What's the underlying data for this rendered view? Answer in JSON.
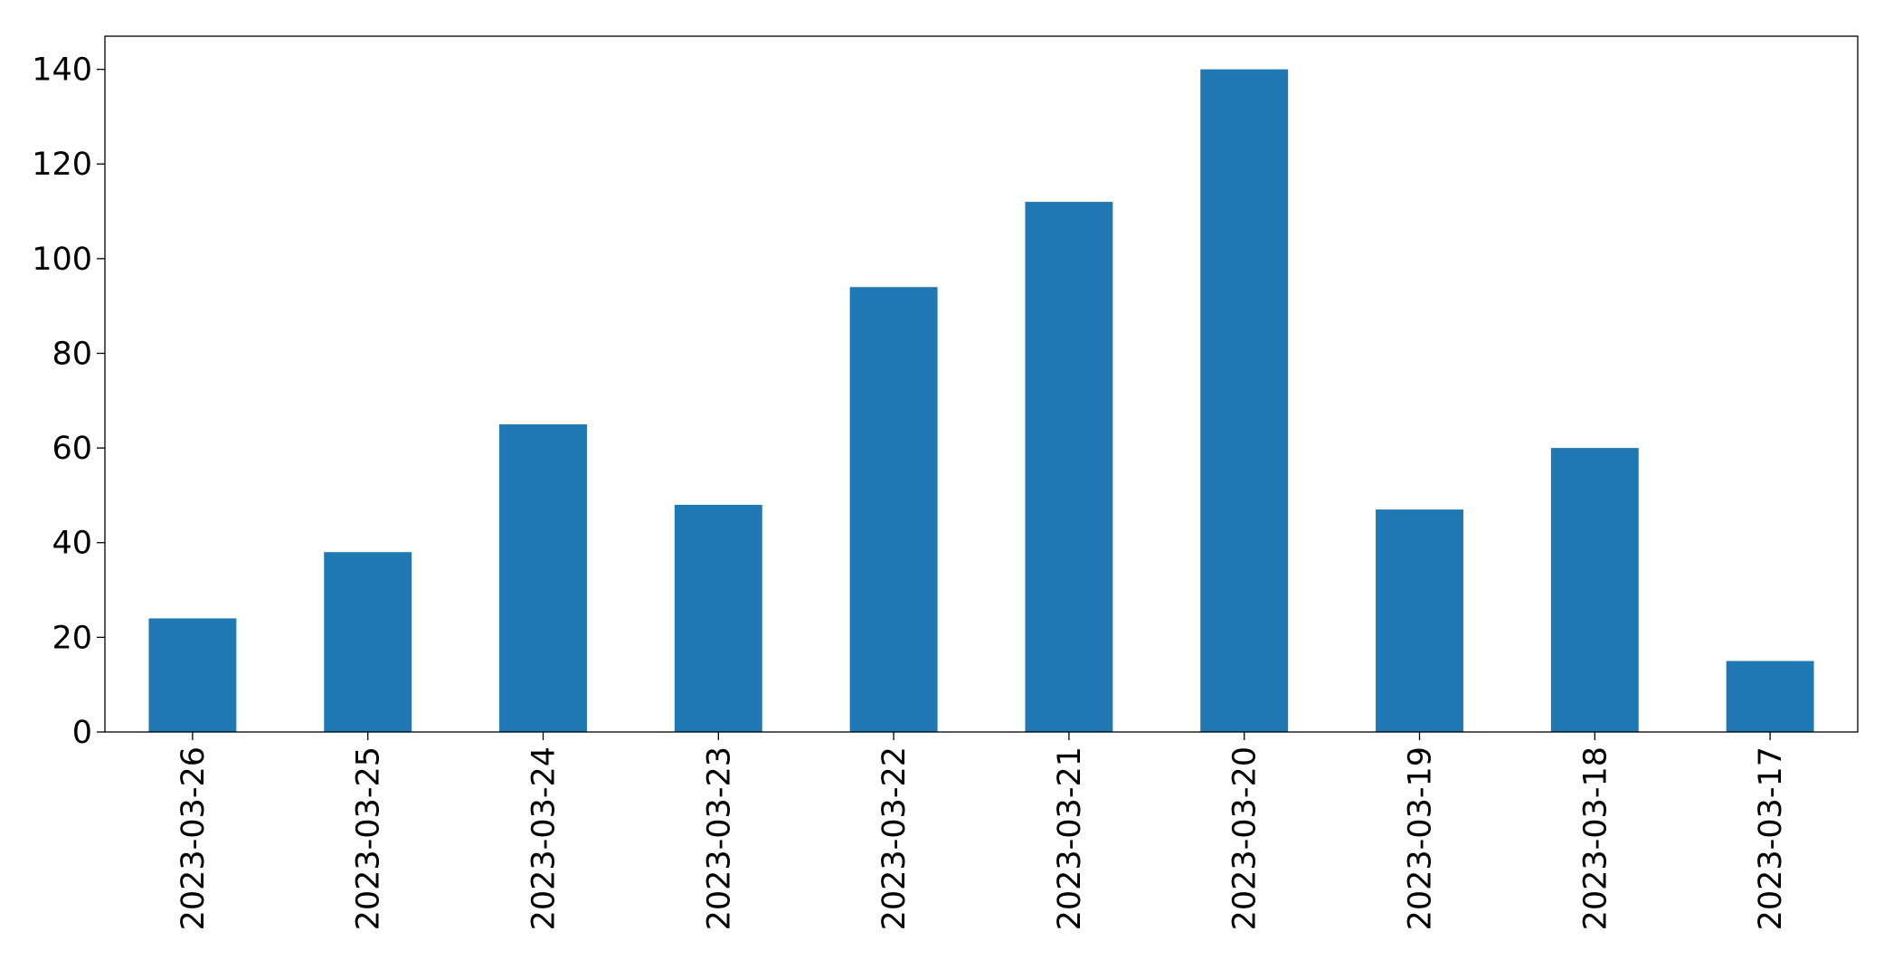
{
  "chart_data": {
    "type": "bar",
    "categories": [
      "2023-03-26",
      "2023-03-25",
      "2023-03-24",
      "2023-03-23",
      "2023-03-22",
      "2023-03-21",
      "2023-03-20",
      "2023-03-19",
      "2023-03-18",
      "2023-03-17"
    ],
    "values": [
      24,
      38,
      65,
      48,
      94,
      112,
      140,
      47,
      60,
      15
    ],
    "color": "#1f77b4",
    "ylim": [
      0,
      147
    ],
    "yticks": [
      0,
      20,
      40,
      60,
      80,
      100,
      120,
      140
    ],
    "grid": false
  }
}
